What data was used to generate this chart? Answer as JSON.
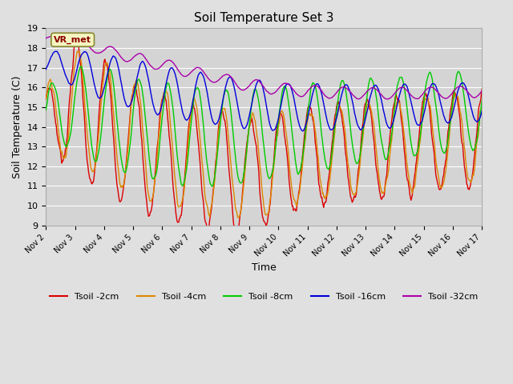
{
  "title": "Soil Temperature Set 3",
  "xlabel": "Time",
  "ylabel": "Soil Temperature (C)",
  "ylim": [
    9.0,
    19.0
  ],
  "yticks": [
    9.0,
    10.0,
    11.0,
    12.0,
    13.0,
    14.0,
    15.0,
    16.0,
    17.0,
    18.0,
    19.0
  ],
  "fig_bg_color": "#e0e0e0",
  "plot_bg_color": "#d4d4d4",
  "annotation_text": "VR_met",
  "annotation_color": "#8B0000",
  "annotation_bg": "#f5f5c0",
  "legend_labels": [
    "Tsoil -2cm",
    "Tsoil -4cm",
    "Tsoil -8cm",
    "Tsoil -16cm",
    "Tsoil -32cm"
  ],
  "line_colors": [
    "#dd0000",
    "#dd8800",
    "#00cc00",
    "#0000dd",
    "#aa00aa"
  ],
  "n_points": 720,
  "x_start": 2,
  "x_end": 17,
  "xtick_positions": [
    2,
    3,
    4,
    5,
    6,
    7,
    8,
    9,
    10,
    11,
    12,
    13,
    14,
    15,
    16,
    17
  ],
  "xtick_labels": [
    "Nov 2",
    "Nov 3",
    "Nov 4",
    "Nov 5",
    "Nov 6",
    "Nov 7",
    "Nov 8",
    "Nov 9",
    "Nov 10",
    "Nov 11",
    "Nov 12",
    "Nov 13",
    "Nov 14",
    "Nov 15",
    "Nov 16",
    "Nov 17"
  ],
  "figsize": [
    6.4,
    4.8
  ],
  "dpi": 100
}
